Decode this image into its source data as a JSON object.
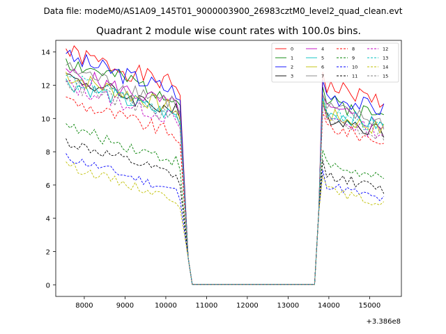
{
  "chart_data": {
    "type": "line",
    "suptitle": "Data file: modeM0/AS1A09_145T01_9000003900_26983cztM0_level2_quad_clean.evt",
    "title": "Quadrant 2 module wise count rates with 100.0s bins.",
    "xlabel": "",
    "ylabel": "",
    "x_offset_label": "+3.386e8",
    "xlim": [
      7300,
      15780
    ],
    "ylim": [
      -0.7,
      14.7
    ],
    "xticks": [
      8000,
      9000,
      10000,
      11000,
      12000,
      13000,
      14000,
      15000
    ],
    "yticks": [
      0,
      2,
      4,
      6,
      8,
      10,
      12,
      14
    ],
    "legend_loc": "upper-right",
    "segments": [
      {
        "start": 7550,
        "step": 100,
        "count": 29
      },
      {
        "start": 10550,
        "step": 100,
        "count": 32
      },
      {
        "start": 13750,
        "step": 100,
        "count": 17
      }
    ],
    "series": [
      {
        "name": "0",
        "color": "#ff0000",
        "dash": "solid",
        "level1": 12.8,
        "level2": 12.0,
        "drop1": 8.7,
        "drop2": 6.0,
        "seed": 1
      },
      {
        "name": "1",
        "color": "#008000",
        "dash": "solid",
        "level1": 12.2,
        "level2": 11.1,
        "drop1": 8.3,
        "drop2": 5.9,
        "seed": 2
      },
      {
        "name": "2",
        "color": "#0000ff",
        "dash": "solid",
        "level1": 12.5,
        "level2": 11.5,
        "drop1": 8.9,
        "drop2": 4.2,
        "seed": 3
      },
      {
        "name": "3",
        "color": "#000000",
        "dash": "solid",
        "level1": 11.3,
        "level2": 10.2,
        "drop1": 7.8,
        "drop2": 5.2,
        "seed": 4
      },
      {
        "name": "4",
        "color": "#c000c0",
        "dash": "solid",
        "level1": 11.6,
        "level2": 10.6,
        "drop1": 8.0,
        "drop2": 5.5,
        "seed": 5
      },
      {
        "name": "5",
        "color": "#00bfbf",
        "dash": "solid",
        "level1": 11.0,
        "level2": 10.5,
        "drop1": 7.5,
        "drop2": 5.4,
        "seed": 6
      },
      {
        "name": "6",
        "color": "#bfbf00",
        "dash": "solid",
        "level1": 11.4,
        "level2": 10.3,
        "drop1": 7.7,
        "drop2": 5.6,
        "seed": 7
      },
      {
        "name": "7",
        "color": "#808080",
        "dash": "solid",
        "level1": 11.8,
        "level2": 10.7,
        "drop1": 8.0,
        "drop2": 5.7,
        "seed": 8
      },
      {
        "name": "8",
        "color": "#ff0000",
        "dash": "dashed",
        "level1": 9.9,
        "level2": 9.6,
        "drop1": 7.0,
        "drop2": 5.3,
        "seed": 9
      },
      {
        "name": "9",
        "color": "#008000",
        "dash": "dashed",
        "level1": 8.3,
        "level2": 7.3,
        "drop1": 6.2,
        "drop2": 4.7,
        "seed": 10
      },
      {
        "name": "10",
        "color": "#0000ff",
        "dash": "dashed",
        "level1": 6.5,
        "level2": 6.1,
        "drop1": 5.0,
        "drop2": 3.8,
        "seed": 11
      },
      {
        "name": "11",
        "color": "#000000",
        "dash": "dashed",
        "level1": 7.4,
        "level2": 6.7,
        "drop1": 5.6,
        "drop2": 4.1,
        "seed": 12
      },
      {
        "name": "12",
        "color": "#c000c0",
        "dash": "dashed",
        "level1": 10.8,
        "level2": 10.1,
        "drop1": 7.8,
        "drop2": 5.5,
        "seed": 13
      },
      {
        "name": "13",
        "color": "#00bfbf",
        "dash": "dashed",
        "level1": 11.2,
        "level2": 10.4,
        "drop1": 7.9,
        "drop2": 5.6,
        "seed": 14
      },
      {
        "name": "14",
        "color": "#bfbf00",
        "dash": "dashed",
        "level1": 6.0,
        "level2": 5.8,
        "drop1": 4.6,
        "drop2": 3.5,
        "seed": 15
      },
      {
        "name": "15",
        "color": "#808080",
        "dash": "dashed",
        "level1": 10.9,
        "level2": 10.0,
        "drop1": 7.6,
        "drop2": 5.4,
        "seed": 16
      }
    ]
  }
}
